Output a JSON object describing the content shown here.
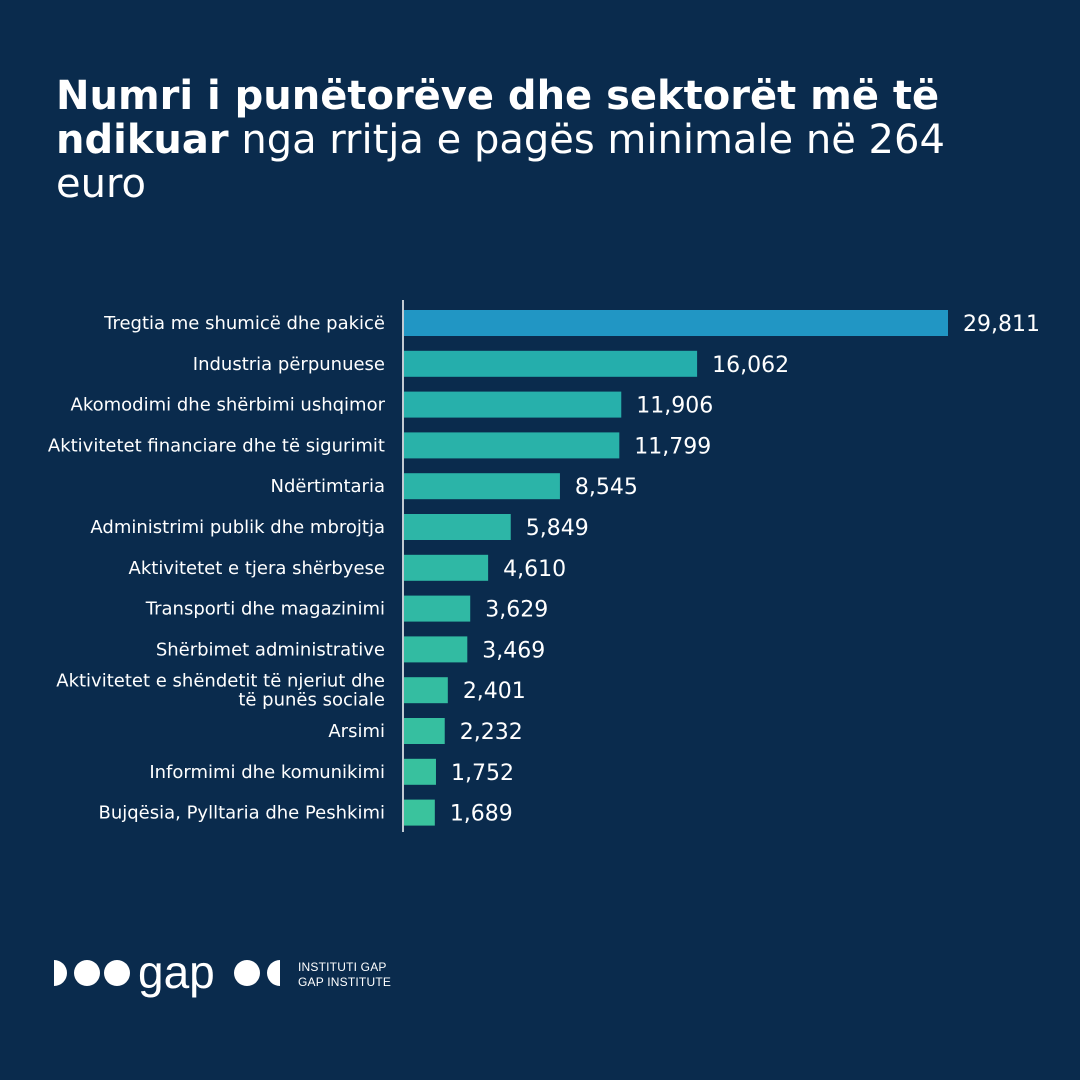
{
  "title": {
    "bold": "Numri i punëtorëve dhe sektorët më të ndikuar",
    "regular": " nga rritja e pagës minimale në 264 euro"
  },
  "chart_data": {
    "type": "bar",
    "orientation": "horizontal",
    "categories": [
      "Tregtia me shumicë dhe pakicë",
      "Industria përpunuese",
      "Akomodimi dhe shërbimi ushqimor",
      "Aktivitetet financiare dhe të sigurimit",
      "Ndërtimtaria",
      "Administrimi publik dhe mbrojtja",
      "Aktivitetet e tjera shërbyese",
      "Transporti dhe magazinimi",
      "Shërbimet administrative",
      "Aktivitetet e shëndetit të njeriut dhe të punës sociale",
      "Arsimi",
      "Informimi dhe komunikimi",
      "Bujqësia, Pylltaria dhe Peshkimi"
    ],
    "category_lines": [
      [
        "Tregtia me shumicë dhe pakicë"
      ],
      [
        "Industria përpunuese"
      ],
      [
        "Akomodimi dhe shërbimi ushqimor"
      ],
      [
        "Aktivitetet financiare dhe të sigurimit"
      ],
      [
        "Ndërtimtaria"
      ],
      [
        "Administrimi publik dhe mbrojtja"
      ],
      [
        "Aktivitetet e tjera shërbyese"
      ],
      [
        "Transporti dhe magazinimi"
      ],
      [
        "Shërbimet administrative"
      ],
      [
        "Aktivitetet e shëndetit të njeriut dhe",
        "të punës sociale"
      ],
      [
        "Arsimi"
      ],
      [
        "Informimi dhe komunikimi"
      ],
      [
        "Bujqësia, Pylltaria dhe Peshkimi"
      ]
    ],
    "values": [
      29811,
      16062,
      11906,
      11799,
      8545,
      5849,
      4610,
      3629,
      3469,
      2401,
      2232,
      1752,
      1689
    ],
    "value_labels": [
      "29,811",
      "16,062",
      "11,906",
      "11,799",
      "8,545",
      "5,849",
      "4,610",
      "3,629",
      "3,469",
      "2,401",
      "2,232",
      "1,752",
      "1,689"
    ],
    "xlim": [
      0,
      29811
    ],
    "colors": {
      "highlight": "#2196c4",
      "gradient_start": "#25aeac",
      "gradient_end": "#3ac39d",
      "axis": "#ffffff"
    },
    "grid": false
  },
  "brand": {
    "logo_text": "gap",
    "org_line1": "INSTITUTI GAP",
    "org_line2": "GAP INSTITUTE"
  }
}
